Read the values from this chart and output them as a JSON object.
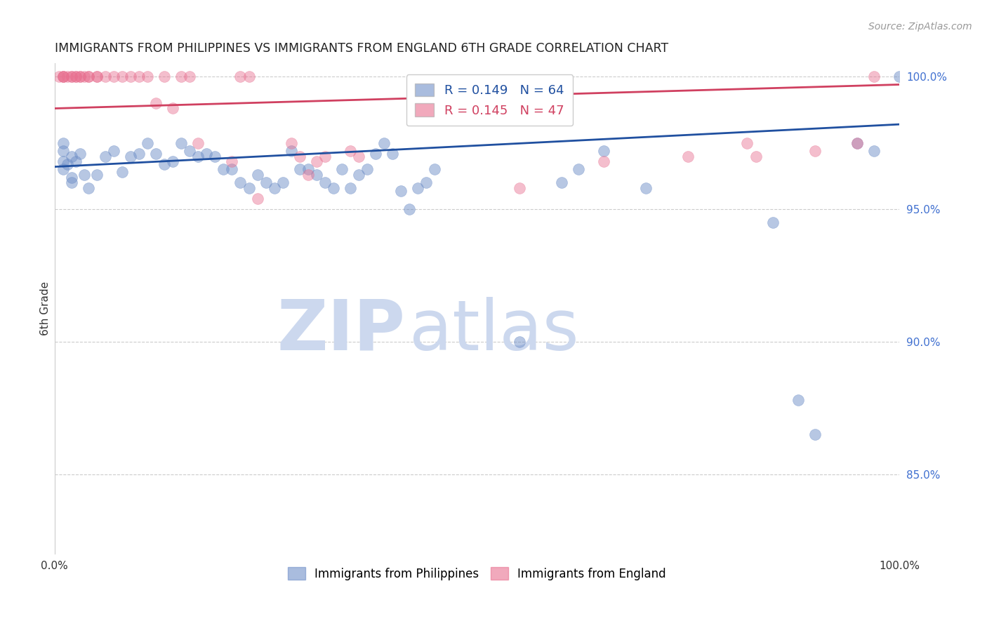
{
  "title": "IMMIGRANTS FROM PHILIPPINES VS IMMIGRANTS FROM ENGLAND 6TH GRADE CORRELATION CHART",
  "source": "Source: ZipAtlas.com",
  "ylabel": "6th Grade",
  "right_yticks": [
    "100.0%",
    "95.0%",
    "90.0%",
    "85.0%"
  ],
  "right_ytick_vals": [
    1.0,
    0.95,
    0.9,
    0.85
  ],
  "blue_color": "#7090c8",
  "pink_color": "#e87090",
  "blue_line_color": "#2050a0",
  "pink_line_color": "#d04060",
  "blue_R": 0.149,
  "blue_N": 64,
  "pink_R": 0.145,
  "pink_N": 47,
  "xlim": [
    0.0,
    1.0
  ],
  "ylim": [
    0.82,
    1.005
  ],
  "blue_trendline": [
    0.0,
    0.966,
    1.0,
    0.982
  ],
  "pink_trendline": [
    0.0,
    0.988,
    1.0,
    0.997
  ],
  "blue_x": [
    0.02,
    0.01,
    0.01,
    0.01,
    0.01,
    0.015,
    0.02,
    0.02,
    0.025,
    0.03,
    0.035,
    0.04,
    0.05,
    0.06,
    0.07,
    0.08,
    0.09,
    0.1,
    0.11,
    0.12,
    0.13,
    0.14,
    0.15,
    0.16,
    0.17,
    0.18,
    0.19,
    0.2,
    0.21,
    0.22,
    0.23,
    0.24,
    0.25,
    0.26,
    0.27,
    0.28,
    0.29,
    0.3,
    0.31,
    0.32,
    0.33,
    0.34,
    0.35,
    0.36,
    0.37,
    0.38,
    0.39,
    0.4,
    0.41,
    0.42,
    0.43,
    0.44,
    0.45,
    0.55,
    0.6,
    0.62,
    0.65,
    0.7,
    0.85,
    0.88,
    0.9,
    0.95,
    0.97,
    1.0
  ],
  "blue_y": [
    0.97,
    0.975,
    0.968,
    0.972,
    0.965,
    0.967,
    0.962,
    0.96,
    0.968,
    0.971,
    0.963,
    0.958,
    0.963,
    0.97,
    0.972,
    0.964,
    0.97,
    0.971,
    0.975,
    0.971,
    0.967,
    0.968,
    0.975,
    0.972,
    0.97,
    0.971,
    0.97,
    0.965,
    0.965,
    0.96,
    0.958,
    0.963,
    0.96,
    0.958,
    0.96,
    0.972,
    0.965,
    0.965,
    0.963,
    0.96,
    0.958,
    0.965,
    0.958,
    0.963,
    0.965,
    0.971,
    0.975,
    0.971,
    0.957,
    0.95,
    0.958,
    0.96,
    0.965,
    0.9,
    0.96,
    0.965,
    0.972,
    0.958,
    0.945,
    0.878,
    0.865,
    0.975,
    0.972,
    1.0
  ],
  "pink_x": [
    0.005,
    0.01,
    0.01,
    0.01,
    0.015,
    0.02,
    0.02,
    0.025,
    0.025,
    0.03,
    0.03,
    0.035,
    0.04,
    0.04,
    0.05,
    0.05,
    0.06,
    0.07,
    0.08,
    0.09,
    0.1,
    0.11,
    0.12,
    0.13,
    0.14,
    0.15,
    0.16,
    0.17,
    0.21,
    0.22,
    0.23,
    0.24,
    0.28,
    0.29,
    0.3,
    0.31,
    0.32,
    0.35,
    0.36,
    0.55,
    0.65,
    0.75,
    0.82,
    0.83,
    0.9,
    0.95,
    0.97
  ],
  "pink_y": [
    1.0,
    1.0,
    1.0,
    1.0,
    1.0,
    1.0,
    1.0,
    1.0,
    1.0,
    1.0,
    1.0,
    1.0,
    1.0,
    1.0,
    1.0,
    1.0,
    1.0,
    1.0,
    1.0,
    1.0,
    1.0,
    1.0,
    0.99,
    1.0,
    0.988,
    1.0,
    1.0,
    0.975,
    0.968,
    1.0,
    1.0,
    0.954,
    0.975,
    0.97,
    0.963,
    0.968,
    0.97,
    0.972,
    0.97,
    0.958,
    0.968,
    0.97,
    0.975,
    0.97,
    0.972,
    0.975,
    1.0
  ],
  "watermark_zip": "ZIP",
  "watermark_atlas": "atlas",
  "watermark_color": "#ccd8ee",
  "background_color": "#ffffff",
  "grid_color": "#cccccc",
  "legend_bottom_labels": [
    "Immigrants from Philippines",
    "Immigrants from England"
  ]
}
